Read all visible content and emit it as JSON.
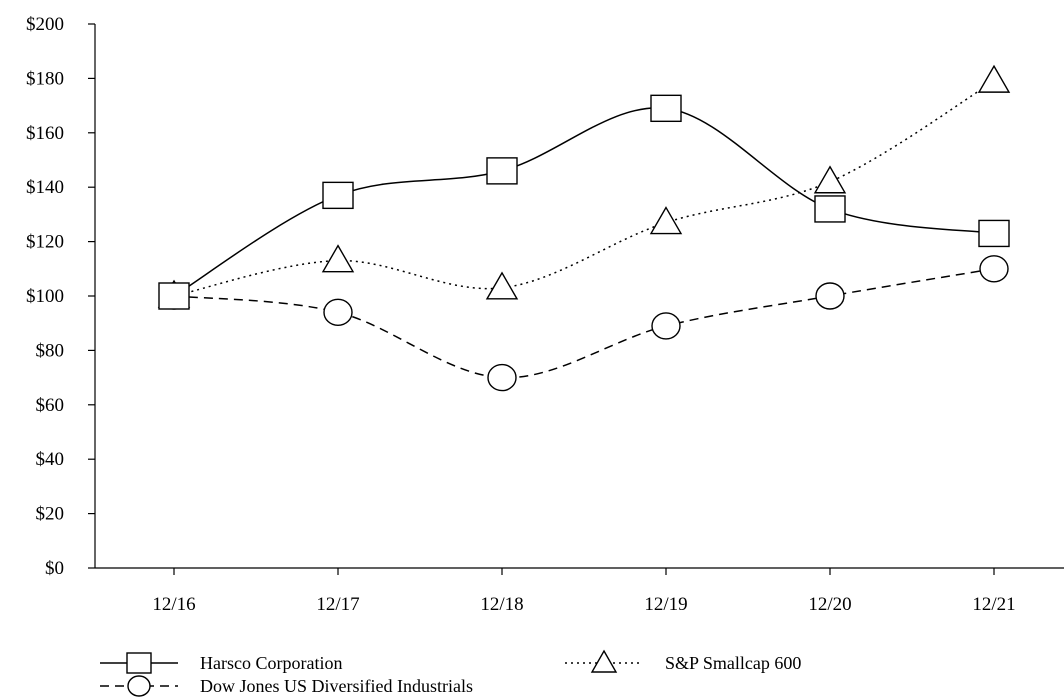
{
  "chart_data": {
    "type": "line",
    "title": "",
    "xlabel": "",
    "ylabel": "",
    "categories": [
      "12/16",
      "12/17",
      "12/18",
      "12/19",
      "12/20",
      "12/21"
    ],
    "ylim": [
      0,
      200
    ],
    "yticks": [
      0,
      20,
      40,
      60,
      80,
      100,
      120,
      140,
      160,
      180,
      200
    ],
    "ytick_labels": [
      "$0",
      "$20",
      "$40",
      "$60",
      "$80",
      "$100",
      "$120",
      "$140",
      "$160",
      "$180",
      "$200"
    ],
    "grid": false,
    "legend_position": "bottom-left",
    "series": [
      {
        "name": "Harsco Corporation",
        "values": [
          100,
          137,
          146,
          169,
          132,
          123
        ],
        "marker": "square",
        "line": "solid"
      },
      {
        "name": "S&P Smallcap 600",
        "values": [
          100,
          113,
          103,
          127,
          142,
          179
        ],
        "marker": "triangle",
        "line": "dotted"
      },
      {
        "name": "Dow Jones US Diversified Industrials",
        "values": [
          100,
          94,
          70,
          89,
          100,
          110
        ],
        "marker": "circle",
        "line": "dashed"
      }
    ],
    "colors": {
      "line": "#000000",
      "background": "#ffffff"
    }
  }
}
